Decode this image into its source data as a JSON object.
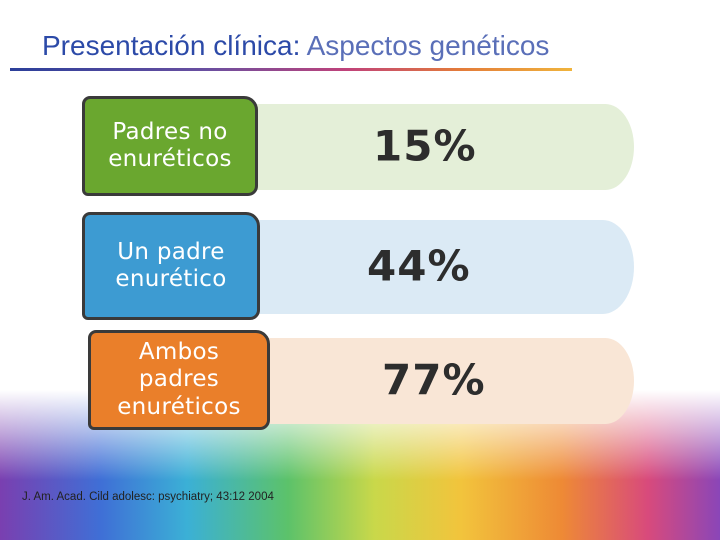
{
  "title": {
    "main": "Presentación clínica:",
    "sub": "Aspectos genéticos"
  },
  "rows": [
    {
      "label": "Padres no enuréticos",
      "percent": "15%",
      "color": "#6aa72f"
    },
    {
      "label": "Un padre enurético",
      "percent": "44%",
      "color": "#3d9bd2"
    },
    {
      "label": "Ambos padres enuréticos",
      "percent": "77%",
      "color": "#ea7f2a"
    }
  ],
  "footnote": "J. Am. Acad. Cild adolesc: psychiatry; 43:12 2004"
}
